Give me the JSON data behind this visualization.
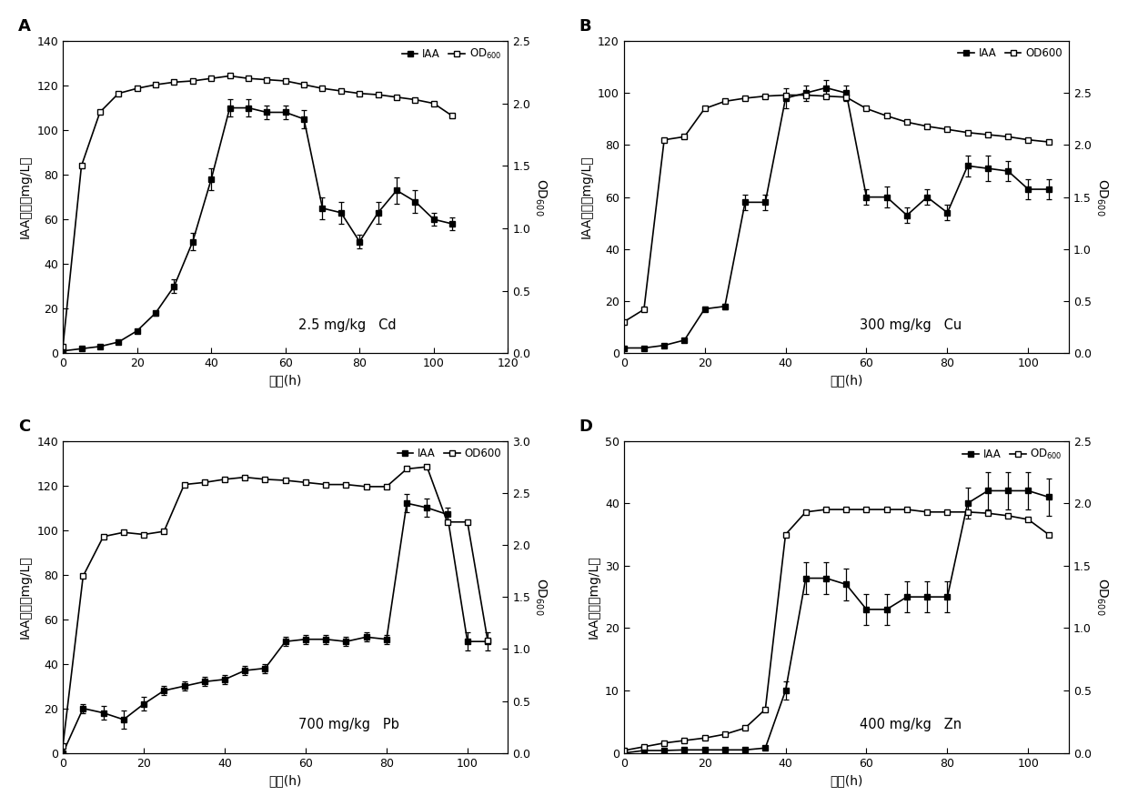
{
  "panels": [
    {
      "label": "A",
      "annotation": "2.5 mg/kg   Cd",
      "iaa_x": [
        0,
        5,
        10,
        15,
        20,
        25,
        30,
        35,
        40,
        45,
        50,
        55,
        60,
        65,
        70,
        75,
        80,
        85,
        90,
        95,
        100,
        105
      ],
      "iaa_y": [
        1,
        2,
        3,
        5,
        10,
        18,
        30,
        50,
        78,
        110,
        110,
        108,
        108,
        105,
        65,
        63,
        50,
        63,
        73,
        68,
        60,
        58
      ],
      "iaa_err": [
        0.5,
        0.5,
        0.5,
        0.5,
        0.5,
        1,
        3,
        4,
        5,
        4,
        4,
        3,
        3,
        4,
        5,
        5,
        3,
        5,
        6,
        5,
        3,
        3
      ],
      "od_x": [
        0,
        5,
        10,
        15,
        20,
        25,
        30,
        35,
        40,
        45,
        50,
        55,
        60,
        65,
        70,
        75,
        80,
        85,
        90,
        95,
        100,
        105
      ],
      "od_y": [
        0.05,
        1.5,
        1.93,
        2.08,
        2.12,
        2.15,
        2.17,
        2.18,
        2.2,
        2.22,
        2.2,
        2.19,
        2.18,
        2.15,
        2.12,
        2.1,
        2.08,
        2.07,
        2.05,
        2.03,
        2.0,
        1.9
      ],
      "iaa_ylim": [
        0,
        140
      ],
      "od_ylim": [
        0.0,
        2.5
      ],
      "iaa_yticks": [
        0,
        20,
        40,
        60,
        80,
        100,
        120,
        140
      ],
      "od_yticks": [
        0.0,
        0.5,
        1.0,
        1.5,
        2.0,
        2.5
      ],
      "xlim": [
        0,
        120
      ],
      "xticks": [
        0,
        20,
        40,
        60,
        80,
        100,
        120
      ],
      "od_legend": "OD$_{600}$"
    },
    {
      "label": "B",
      "annotation": "300 mg/kg   Cu",
      "iaa_x": [
        0,
        5,
        10,
        15,
        20,
        25,
        30,
        35,
        40,
        45,
        50,
        55,
        60,
        65,
        70,
        75,
        80,
        85,
        90,
        95,
        100,
        105
      ],
      "iaa_y": [
        2,
        2,
        3,
        5,
        17,
        18,
        58,
        58,
        98,
        100,
        102,
        100,
        60,
        60,
        53,
        60,
        54,
        72,
        71,
        70,
        63,
        63
      ],
      "iaa_err": [
        0.5,
        0.5,
        0.5,
        0.5,
        1,
        1,
        3,
        3,
        4,
        3,
        3,
        3,
        3,
        4,
        3,
        3,
        3,
        4,
        5,
        4,
        4,
        4
      ],
      "od_x": [
        0,
        5,
        10,
        15,
        20,
        25,
        30,
        35,
        40,
        45,
        50,
        55,
        60,
        65,
        70,
        75,
        80,
        85,
        90,
        95,
        100,
        105
      ],
      "od_y": [
        0.3,
        0.42,
        2.05,
        2.08,
        2.35,
        2.42,
        2.45,
        2.47,
        2.48,
        2.48,
        2.47,
        2.46,
        2.35,
        2.28,
        2.22,
        2.18,
        2.15,
        2.12,
        2.1,
        2.08,
        2.05,
        2.03
      ],
      "iaa_ylim": [
        0,
        120
      ],
      "od_ylim": [
        0.0,
        3.0
      ],
      "iaa_yticks": [
        0,
        20,
        40,
        60,
        80,
        100,
        120
      ],
      "od_yticks": [
        0.0,
        0.5,
        1.0,
        1.5,
        2.0,
        2.5
      ],
      "xlim": [
        0,
        110
      ],
      "xticks": [
        0,
        20,
        40,
        60,
        80,
        100
      ],
      "od_legend": "OD600"
    },
    {
      "label": "C",
      "annotation": "700 mg/kg   Pb",
      "iaa_x": [
        0,
        5,
        10,
        15,
        20,
        25,
        30,
        35,
        40,
        45,
        50,
        55,
        60,
        65,
        70,
        75,
        80,
        85,
        90,
        95,
        100,
        105
      ],
      "iaa_y": [
        0,
        20,
        18,
        15,
        22,
        28,
        30,
        32,
        33,
        37,
        38,
        50,
        51,
        51,
        50,
        52,
        51,
        112,
        110,
        107,
        50,
        50
      ],
      "iaa_err": [
        0.5,
        2,
        3,
        4,
        3,
        2,
        2,
        2,
        2,
        2,
        2,
        2,
        2,
        2,
        2,
        2,
        2,
        4,
        4,
        3,
        4,
        4
      ],
      "od_x": [
        0,
        5,
        10,
        15,
        20,
        25,
        30,
        35,
        40,
        45,
        50,
        55,
        60,
        65,
        70,
        75,
        80,
        85,
        90,
        95,
        100,
        105
      ],
      "od_y": [
        0.07,
        1.7,
        2.08,
        2.12,
        2.1,
        2.13,
        2.58,
        2.6,
        2.63,
        2.65,
        2.63,
        2.62,
        2.6,
        2.58,
        2.58,
        2.56,
        2.56,
        2.73,
        2.75,
        2.22,
        2.22,
        1.08
      ],
      "iaa_ylim": [
        0,
        140
      ],
      "od_ylim": [
        0.0,
        3.0
      ],
      "iaa_yticks": [
        0,
        20,
        40,
        60,
        80,
        100,
        120,
        140
      ],
      "od_yticks": [
        0.0,
        0.5,
        1.0,
        1.5,
        2.0,
        2.5,
        3.0
      ],
      "xlim": [
        0,
        110
      ],
      "xticks": [
        0,
        20,
        40,
        60,
        80,
        100
      ],
      "od_legend": "OD600"
    },
    {
      "label": "D",
      "annotation": "400 mg/kg   Zn",
      "iaa_x": [
        0,
        5,
        10,
        15,
        20,
        25,
        30,
        35,
        40,
        45,
        50,
        55,
        60,
        65,
        70,
        75,
        80,
        85,
        90,
        95,
        100,
        105
      ],
      "iaa_y": [
        0,
        0.4,
        0.4,
        0.5,
        0.5,
        0.5,
        0.5,
        0.8,
        10,
        28,
        28,
        27,
        23,
        23,
        25,
        25,
        25,
        40,
        42,
        42,
        42,
        41
      ],
      "iaa_err": [
        0.1,
        0.1,
        0.1,
        0.1,
        0.1,
        0.1,
        0.1,
        0.1,
        1.5,
        2.5,
        2.5,
        2.5,
        2.5,
        2.5,
        2.5,
        2.5,
        2.5,
        2.5,
        3,
        3,
        3,
        3
      ],
      "od_x": [
        0,
        5,
        10,
        15,
        20,
        25,
        30,
        35,
        40,
        45,
        50,
        55,
        60,
        65,
        70,
        75,
        80,
        85,
        90,
        95,
        100,
        105
      ],
      "od_y": [
        0.02,
        0.05,
        0.08,
        0.1,
        0.12,
        0.15,
        0.2,
        0.35,
        1.75,
        1.93,
        1.95,
        1.95,
        1.95,
        1.95,
        1.95,
        1.93,
        1.93,
        1.93,
        1.92,
        1.9,
        1.87,
        1.75
      ],
      "iaa_ylim": [
        0,
        50
      ],
      "od_ylim": [
        0.0,
        2.5
      ],
      "iaa_yticks": [
        0,
        10,
        20,
        30,
        40,
        50
      ],
      "od_yticks": [
        0.0,
        0.5,
        1.0,
        1.5,
        2.0,
        2.5
      ],
      "xlim": [
        0,
        110
      ],
      "xticks": [
        0,
        20,
        40,
        60,
        80,
        100
      ],
      "od_legend": "OD$_{600}$"
    }
  ],
  "legend_iaa": "IAA",
  "fontsize": 10,
  "tick_fontsize": 9,
  "label_fontsize": 13,
  "markersize": 5,
  "linewidth": 1.2,
  "capsize": 2.5
}
